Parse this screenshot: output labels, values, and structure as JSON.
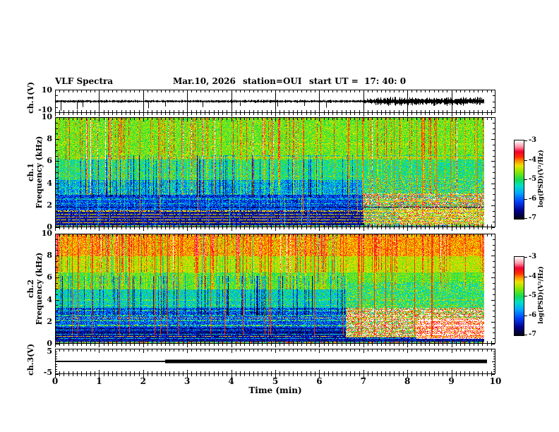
{
  "header": {
    "title": "VLF Spectra",
    "date": "Mar.10, 2026",
    "station": "station=OUI",
    "start_ut": "start UT =  17: 40: 0"
  },
  "axes": {
    "x": {
      "label": "Time (min)",
      "min": 0,
      "max": 10,
      "ticks": [
        "0",
        "1",
        "2",
        "3",
        "4",
        "5",
        "6",
        "7",
        "8",
        "9",
        "10"
      ]
    },
    "ch1v": {
      "label": "ch.1(V)",
      "ymax": "10",
      "ymin": "-10"
    },
    "spec1": {
      "label_line1": "ch.1",
      "label_line2": "Frequency (kHz)",
      "yticks": [
        "0",
        "2",
        "4",
        "6",
        "8",
        "10"
      ]
    },
    "spec2": {
      "label_line1": "ch.2",
      "label_line2": "Frequency (kHz)",
      "yticks": [
        "0",
        "2",
        "4",
        "6",
        "8",
        "10"
      ]
    },
    "ch3v": {
      "label": "ch.3(V)",
      "ymax": "5",
      "ymin": "-5"
    }
  },
  "colorbar": {
    "label": "log(PSD)(V²/Hz)",
    "ticks": [
      "-3",
      "-4",
      "-5",
      "-6",
      "-7"
    ],
    "value_range": [
      -7,
      -3
    ]
  },
  "chart_data": {
    "type": "heatmap",
    "title": "VLF Spectra",
    "x_range": [
      0,
      10
    ],
    "x_unit": "min",
    "data_end_min": 9.75,
    "value_label": "log(PSD)(V²/Hz)",
    "value_range": [
      -7,
      -3
    ],
    "colormap_stops": [
      [
        0.0,
        "#04041a"
      ],
      [
        0.1,
        "#00008c"
      ],
      [
        0.22,
        "#0044ff"
      ],
      [
        0.33,
        "#00aaff"
      ],
      [
        0.42,
        "#00e0c8"
      ],
      [
        0.5,
        "#16dc50"
      ],
      [
        0.6,
        "#8ce800"
      ],
      [
        0.68,
        "#eee400"
      ],
      [
        0.74,
        "#ff9000"
      ],
      [
        0.79,
        "#ff3000"
      ],
      [
        0.86,
        "#f20030"
      ],
      [
        0.92,
        "#ff8ca0"
      ],
      [
        1.0,
        "#ffffff"
      ]
    ],
    "panels": [
      {
        "id": "ch1-waveform",
        "type": "line",
        "channel": "ch.1(V)",
        "y_range": [
          -10,
          10
        ],
        "seed": 11,
        "base_amplitude": 1.1,
        "high_amplitude": 3.0,
        "amp_ramp": [
          6.9,
          7.4
        ],
        "grid_minutes": [
          1,
          2,
          3,
          4,
          5,
          6,
          7,
          8,
          9
        ],
        "spikes": [
          [
            0.13,
            -8
          ],
          [
            0.5,
            -7
          ],
          [
            0.62,
            -5
          ],
          [
            2.12,
            -6
          ],
          [
            2.5,
            -4.5
          ],
          [
            3.35,
            -5
          ],
          [
            4.2,
            -4
          ],
          [
            5.05,
            -4.5
          ],
          [
            5.65,
            -4
          ],
          [
            6.15,
            -5.5
          ]
        ]
      },
      {
        "id": "ch1-spectrogram",
        "type": "heatmap",
        "channel": "ch.1",
        "f_range": [
          0,
          10
        ],
        "f_unit": "kHz",
        "seed": 21,
        "bands": [
          [
            0.0,
            0.22,
            -4.9,
            1.3
          ],
          [
            0.22,
            1.55,
            -6.55,
            0.4
          ],
          [
            1.55,
            2.95,
            -6.15,
            0.55
          ],
          [
            2.95,
            4.3,
            -5.65,
            0.6
          ],
          [
            4.3,
            6.2,
            -5.1,
            0.5
          ],
          [
            6.2,
            10,
            -4.7,
            0.38
          ]
        ],
        "hlines": [
          [
            0.45,
            "set",
            -4.2,
            0.85,
            0,
            9.75
          ],
          [
            0.7,
            "set",
            -4.25,
            0.8,
            0,
            9.75
          ],
          [
            0.95,
            "set",
            -4.2,
            0.85,
            0,
            9.75
          ],
          [
            1.2,
            "set",
            -4.3,
            0.75,
            0,
            9.75
          ],
          [
            1.5,
            "set",
            -4.25,
            0.7,
            0,
            9.75
          ],
          [
            1.85,
            "set",
            -6.9,
            0.8,
            0,
            9.75
          ],
          [
            2.2,
            "add",
            0.9,
            0.6,
            0,
            9.75
          ],
          [
            2.6,
            "add",
            0.8,
            0.6,
            0,
            9.75
          ],
          [
            3.1,
            "add",
            0.7,
            0.55,
            0,
            9.75
          ],
          [
            3.6,
            "add",
            0.6,
            0.5,
            0,
            9.75
          ],
          [
            4.15,
            "add",
            0.55,
            0.5,
            0,
            9.75
          ],
          [
            4.7,
            "add",
            0.5,
            0.45,
            0,
            9.75
          ],
          [
            6.35,
            "set",
            -4.15,
            0.8,
            0.5,
            9.75
          ],
          [
            6.55,
            "set",
            -5.6,
            0.5,
            3.5,
            9.75
          ],
          [
            7.6,
            "set",
            -4.35,
            0.5,
            4.0,
            9.75
          ],
          [
            2.4,
            "set",
            -4.2,
            0.6,
            7.3,
            9.75
          ],
          [
            3.0,
            "set",
            -4.25,
            0.6,
            7.5,
            9.75
          ]
        ],
        "phase2_regions": [
          [
            7.0,
            0.25,
            3.1,
            -4.4,
            1.5
          ],
          [
            7.0,
            3.1,
            4.5,
            -5.05,
            0.75
          ],
          [
            7.8,
            0.25,
            1.9,
            -3.95,
            1.3
          ]
        ],
        "vstreaks": [
          {
            "n": 130,
            "f": [
              3.0,
              10
            ],
            "mode": "add",
            "val": 0.5,
            "valr": 0.5,
            "t": [
              0,
              9.75
            ],
            "split": 6.5,
            "p": 0.72
          },
          {
            "n": 13,
            "f": [
              1.2,
              10
            ],
            "mode": "set",
            "val": -3.95,
            "valr": 0,
            "t": [
              0.3,
              9.7
            ],
            "split": 6.5,
            "p": 0.5
          },
          {
            "n": 65,
            "f": [
              2.8,
              6.6
            ],
            "mode": "add",
            "val": -0.95,
            "valr": 0,
            "t": [
              0,
              6.8
            ],
            "split": 6.8,
            "p": 1
          },
          {
            "n": 45,
            "f": [
              0.25,
              2.8
            ],
            "mode": "add",
            "val": 0.55,
            "valr": 0,
            "t": [
              0,
              6.5
            ],
            "split": 6.5,
            "p": 1
          }
        ]
      },
      {
        "id": "ch2-spectrogram",
        "type": "heatmap",
        "channel": "ch.2",
        "f_range": [
          0,
          10
        ],
        "f_unit": "kHz",
        "seed": 22,
        "bands": [
          [
            0.0,
            0.22,
            -4.75,
            1.3
          ],
          [
            0.22,
            1.5,
            -6.5,
            0.45
          ],
          [
            1.5,
            3.3,
            -6.05,
            0.6
          ],
          [
            3.3,
            5.0,
            -5.3,
            0.55
          ],
          [
            5.0,
            6.5,
            -4.8,
            0.4
          ],
          [
            6.5,
            8.0,
            -4.45,
            0.35
          ],
          [
            8.0,
            10,
            -4.1,
            0.3
          ]
        ],
        "hlines": [
          [
            0.5,
            "add",
            1.1,
            0.7,
            0,
            9.75
          ],
          [
            0.9,
            "add",
            1.2,
            0.7,
            0,
            9.75
          ],
          [
            1.3,
            "add",
            1.1,
            0.65,
            0,
            9.75
          ],
          [
            1.7,
            "add",
            1.2,
            0.65,
            0,
            9.75
          ],
          [
            2.15,
            "add",
            1.1,
            0.6,
            0,
            9.75
          ],
          [
            2.6,
            "add",
            1.0,
            0.6,
            0,
            9.75
          ],
          [
            3.05,
            "add",
            0.9,
            0.6,
            0,
            9.75
          ],
          [
            0.68,
            "set",
            -4.15,
            0.55,
            0,
            9.75
          ],
          [
            2.35,
            "set",
            -4.2,
            0.55,
            0,
            9.75
          ],
          [
            1.05,
            "set",
            -6.9,
            0.7,
            0,
            6.6
          ],
          [
            3.55,
            "add",
            0.6,
            0.5,
            0,
            9.75
          ],
          [
            4.0,
            "add",
            0.5,
            0.5,
            0,
            9.75
          ],
          [
            1.6,
            "set",
            -3.3,
            0.6,
            7.0,
            9.75
          ],
          [
            2.3,
            "set",
            -3.2,
            0.6,
            7.2,
            9.75
          ]
        ],
        "phase2_regions": [
          [
            6.6,
            0.6,
            3.3,
            -4.05,
            1.4
          ],
          [
            6.6,
            3.3,
            5.6,
            -5.0,
            0.65
          ],
          [
            8.2,
            0.5,
            2.3,
            -3.45,
            0.9
          ]
        ],
        "vstreaks": [
          {
            "n": 140,
            "f": [
              5.0,
              10
            ],
            "mode": "add",
            "val": 0.35,
            "valr": 0.4,
            "t": [
              0,
              9.75
            ],
            "split": 9.75,
            "p": 1
          },
          {
            "n": 55,
            "f": [
              5.5,
              10
            ],
            "mode": "add",
            "val": -0.55,
            "valr": 0,
            "t": [
              0,
              6.5
            ],
            "split": 6.5,
            "p": 1
          },
          {
            "n": 26,
            "f": [
              0.8,
              10
            ],
            "mode": "set",
            "val": -3.85,
            "valr": 0,
            "t": [
              0.2,
              9.7
            ],
            "split": 4.5,
            "p": 0.35
          },
          {
            "n": 75,
            "f": [
              2.6,
              6.2
            ],
            "mode": "add",
            "val": -1.0,
            "valr": 0,
            "t": [
              0,
              6.6
            ],
            "split": 6.6,
            "p": 1
          }
        ]
      },
      {
        "id": "ch3-line",
        "type": "line",
        "channel": "ch.3(V)",
        "y_range": [
          -5,
          5
        ],
        "level": 0,
        "thin_segment_min": [
          0,
          2.5
        ],
        "thick_segment_min": [
          2.5,
          9.8
        ]
      }
    ]
  }
}
